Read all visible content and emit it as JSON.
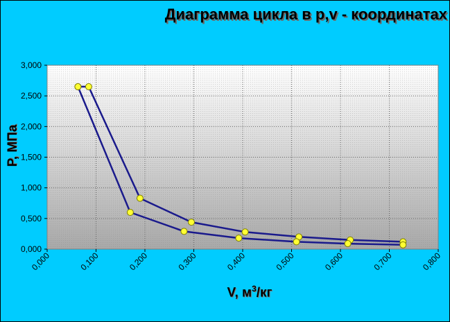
{
  "chart_data": {
    "type": "line",
    "title": "Диаграмма цикла в р,v - координатах",
    "xlabel_main": "V, м",
    "xlabel_sup": "3",
    "xlabel_tail": "/кг",
    "ylabel": "P, МПа",
    "xlim": [
      0,
      0.8
    ],
    "ylim": [
      0,
      3.0
    ],
    "x_ticks": [
      "0,000",
      "0,100",
      "0,200",
      "0,300",
      "0,400",
      "0,500",
      "0,600",
      "0,700",
      "0,800"
    ],
    "y_ticks": [
      "0,000",
      "0,500",
      "1,000",
      "1,500",
      "2,000",
      "2,500",
      "3,000"
    ],
    "grid": true,
    "line_color": "#1a1a8c",
    "marker_color": "#ffff33",
    "series": [
      {
        "points": [
          {
            "x": 0.063,
            "y": 2.65
          },
          {
            "x": 0.085,
            "y": 2.65
          },
          {
            "x": 0.19,
            "y": 0.83
          },
          {
            "x": 0.295,
            "y": 0.44
          },
          {
            "x": 0.405,
            "y": 0.28
          },
          {
            "x": 0.515,
            "y": 0.2
          },
          {
            "x": 0.62,
            "y": 0.15
          },
          {
            "x": 0.728,
            "y": 0.12
          },
          {
            "x": 0.728,
            "y": 0.07
          },
          {
            "x": 0.615,
            "y": 0.09
          },
          {
            "x": 0.51,
            "y": 0.12
          },
          {
            "x": 0.392,
            "y": 0.18
          },
          {
            "x": 0.28,
            "y": 0.29
          },
          {
            "x": 0.17,
            "y": 0.6
          },
          {
            "x": 0.063,
            "y": 2.65
          }
        ]
      }
    ]
  }
}
